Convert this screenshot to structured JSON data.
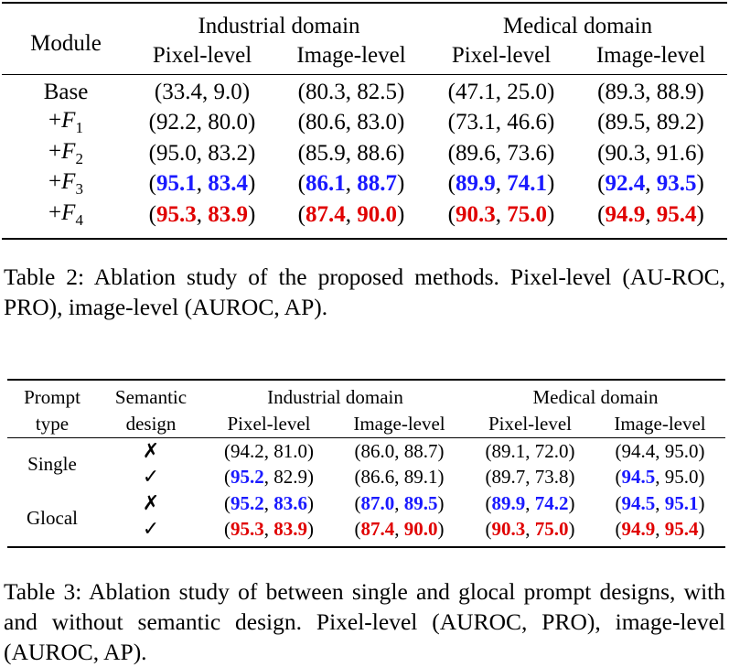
{
  "table2": {
    "group_headers": [
      "Industrial domain",
      "Medical domain"
    ],
    "module_header": "Module",
    "sub_headers": [
      "Pixel-level",
      "Image-level",
      "Pixel-level",
      "Image-level"
    ],
    "rows": [
      {
        "label": "Base",
        "cells": [
          [
            "(33.4, 9.0)"
          ],
          [
            "(80.3, 82.5)"
          ],
          [
            "(47.1, 25.0)"
          ],
          [
            "(89.3, 88.9)"
          ]
        ]
      },
      {
        "label": "+F1",
        "cells": [
          [
            "(92.2, 80.0)"
          ],
          [
            "(80.6, 83.0)"
          ],
          [
            "(73.1, 46.6)"
          ],
          [
            "(89.5, 89.2)"
          ]
        ]
      },
      {
        "label": "+F2",
        "cells": [
          [
            "(95.0, 83.2)"
          ],
          [
            "(85.9, 88.6)"
          ],
          [
            "(89.6, 73.6)"
          ],
          [
            "(90.3, 91.6)"
          ]
        ]
      },
      {
        "label": "+F3",
        "style": "blue",
        "cells": [
          [
            "95.1",
            "83.4"
          ],
          [
            "86.1",
            "88.7"
          ],
          [
            "89.9",
            "74.1"
          ],
          [
            "92.4",
            "93.5"
          ]
        ]
      },
      {
        "label": "+F4",
        "style": "red",
        "cells": [
          [
            "95.3",
            "83.9"
          ],
          [
            "87.4",
            "90.0"
          ],
          [
            "90.3",
            "75.0"
          ],
          [
            "94.9",
            "95.4"
          ]
        ]
      }
    ],
    "caption": "Table 2: Ablation study of the proposed methods. Pixel-level (AU-ROC, PRO), image-level (AUROC, AP)."
  },
  "table3": {
    "col1_header": [
      "Prompt",
      "type"
    ],
    "col2_header": [
      "Semantic",
      "design"
    ],
    "group_headers": [
      "Industrial domain",
      "Medical domain"
    ],
    "sub_headers": [
      "Pixel-level",
      "Image-level",
      "Pixel-level",
      "Image-level"
    ],
    "groups": [
      {
        "name": "Single",
        "rows": [
          {
            "mark": "✗",
            "cells": [
              [
                "94.2",
                "81.0"
              ],
              [
                "86.0",
                "88.7"
              ],
              [
                "89.1",
                "72.0"
              ],
              [
                "94.4",
                "95.0"
              ]
            ],
            "styles": [
              [
                "k",
                "k"
              ],
              [
                "k",
                "k"
              ],
              [
                "k",
                "k"
              ],
              [
                "k",
                "k"
              ]
            ]
          },
          {
            "mark": "✓",
            "cells": [
              [
                "95.2",
                "82.9"
              ],
              [
                "86.6",
                "89.1"
              ],
              [
                "89.7",
                "73.8"
              ],
              [
                "94.5",
                "95.0"
              ]
            ],
            "styles": [
              [
                "b",
                "k"
              ],
              [
                "k",
                "k"
              ],
              [
                "k",
                "k"
              ],
              [
                "b",
                "k"
              ]
            ]
          }
        ]
      },
      {
        "name": "Glocal",
        "rows": [
          {
            "mark": "✗",
            "cells": [
              [
                "95.2",
                "83.6"
              ],
              [
                "87.0",
                "89.5"
              ],
              [
                "89.9",
                "74.2"
              ],
              [
                "94.5",
                "95.1"
              ]
            ],
            "styles": [
              [
                "b",
                "b"
              ],
              [
                "b",
                "b"
              ],
              [
                "b",
                "b"
              ],
              [
                "b",
                "b"
              ]
            ]
          },
          {
            "mark": "✓",
            "cells": [
              [
                "95.3",
                "83.9"
              ],
              [
                "87.4",
                "90.0"
              ],
              [
                "90.3",
                "75.0"
              ],
              [
                "94.9",
                "95.4"
              ]
            ],
            "styles": [
              [
                "r",
                "r"
              ],
              [
                "r",
                "r"
              ],
              [
                "r",
                "r"
              ],
              [
                "r",
                "r"
              ]
            ]
          }
        ]
      }
    ],
    "caption": "Table 3: Ablation study of between single and glocal prompt designs, with and without semantic design. Pixel-level (AUROC, PRO), image-level (AUROC, AP)."
  },
  "colors": {
    "best": "#e00000",
    "second": "#1a1aff"
  }
}
